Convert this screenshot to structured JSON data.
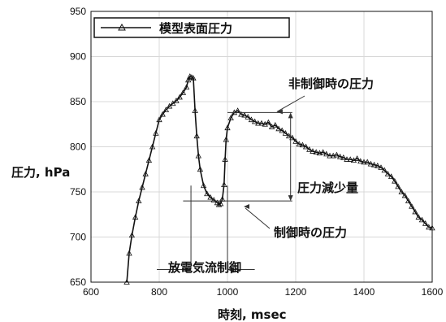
{
  "chart_data": {
    "type": "line",
    "xlabel": "時刻, msec",
    "ylabel": "圧力, hPa",
    "xlim": [
      600,
      1600
    ],
    "ylim": [
      650,
      950
    ],
    "xticks": [
      600,
      800,
      1000,
      1200,
      1400,
      1600
    ],
    "yticks": [
      650,
      700,
      750,
      800,
      850,
      900,
      950
    ],
    "grid": true,
    "legend_position": "top-left",
    "series": [
      {
        "name": "模型表面圧力",
        "color": "#111111",
        "marker": "triangle",
        "x": [
          705,
          712,
          720,
          730,
          740,
          750,
          760,
          770,
          780,
          790,
          800,
          810,
          820,
          830,
          840,
          850,
          860,
          870,
          880,
          885,
          890,
          895,
          900,
          905,
          910,
          915,
          920,
          930,
          940,
          950,
          960,
          970,
          975,
          980,
          985,
          990,
          993,
          996,
          1000,
          1010,
          1020,
          1030,
          1040,
          1050,
          1060,
          1070,
          1080,
          1090,
          1100,
          1110,
          1120,
          1130,
          1140,
          1150,
          1160,
          1170,
          1180,
          1190,
          1200,
          1210,
          1220,
          1230,
          1240,
          1250,
          1260,
          1270,
          1280,
          1290,
          1300,
          1310,
          1320,
          1330,
          1340,
          1350,
          1360,
          1370,
          1380,
          1390,
          1400,
          1410,
          1420,
          1430,
          1440,
          1450,
          1460,
          1470,
          1480,
          1490,
          1500,
          1510,
          1520,
          1530,
          1540,
          1550,
          1560,
          1570,
          1580,
          1590,
          1600
        ],
        "y": [
          650,
          682,
          702,
          722,
          740,
          755,
          770,
          785,
          800,
          815,
          830,
          836,
          841,
          845,
          848,
          851,
          855,
          860,
          866,
          874,
          878,
          877,
          876,
          840,
          812,
          790,
          775,
          757,
          748,
          744,
          741,
          738,
          736,
          737,
          742,
          758,
          786,
          808,
          821,
          832,
          838,
          840,
          836,
          835,
          833,
          830,
          828,
          826,
          826,
          825,
          827,
          822,
          824,
          820,
          818,
          815,
          812,
          810,
          806,
          803,
          802,
          800,
          797,
          795,
          794,
          793,
          794,
          792,
          790,
          790,
          791,
          789,
          788,
          786,
          786,
          785,
          787,
          784,
          783,
          783,
          781,
          780,
          779,
          777,
          774,
          770,
          767,
          762,
          756,
          750,
          746,
          740,
          734,
          728,
          722,
          719,
          715,
          711,
          710
        ]
      }
    ],
    "annotations": [
      {
        "text": "非制御時の圧力"
      },
      {
        "text": "圧力減少量"
      },
      {
        "text": "制御時の圧力"
      },
      {
        "text": "放電気流制御"
      }
    ]
  }
}
